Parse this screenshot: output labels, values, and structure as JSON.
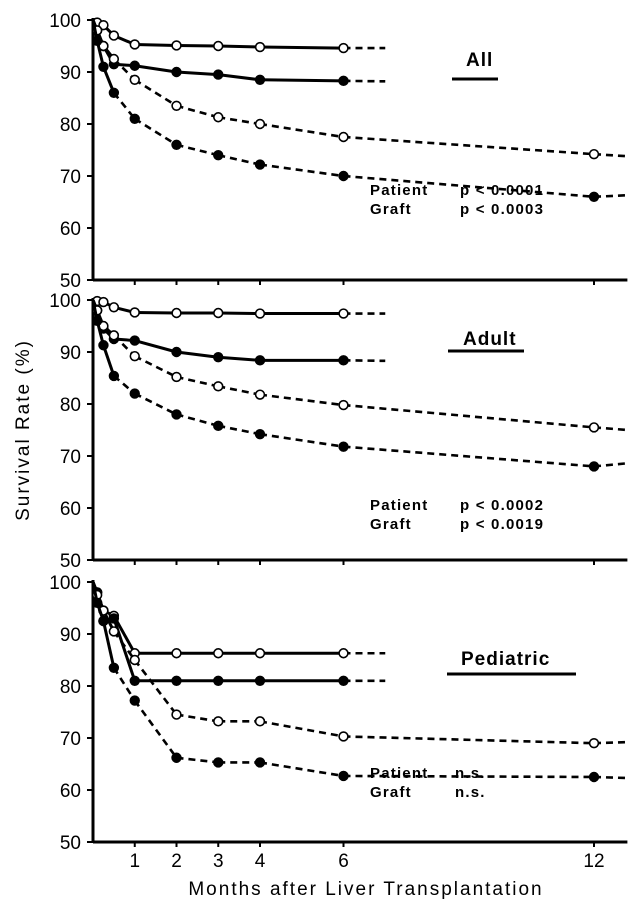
{
  "chart_data": {
    "type": "line",
    "ylabel": "Survival Rate (%)",
    "xlabel": "Months after Liver Transplantation",
    "x_ticks": [
      1,
      2,
      3,
      4,
      6,
      12
    ],
    "y_ticks": [
      50,
      60,
      70,
      80,
      90,
      100
    ],
    "xlim": [
      0,
      12.8
    ],
    "ylim": [
      50,
      100
    ],
    "panels": [
      {
        "title": "All",
        "stats": [
          {
            "label": "Patient",
            "value": "p < 0.0001"
          },
          {
            "label": "Graft",
            "value": "p < 0.0003"
          }
        ],
        "series": [
          {
            "open": true,
            "solid_until": 6,
            "points": [
              [
                0,
                100
              ],
              [
                0.1,
                99.5
              ],
              [
                0.25,
                99
              ],
              [
                0.5,
                97
              ],
              [
                1,
                95.3
              ],
              [
                2,
                95.1
              ],
              [
                3,
                95
              ],
              [
                4,
                94.8
              ],
              [
                6,
                94.6
              ],
              [
                7,
                94.6
              ]
            ]
          },
          {
            "open": false,
            "solid_until": 6,
            "points": [
              [
                0,
                100
              ],
              [
                0.1,
                98
              ],
              [
                0.25,
                95
              ],
              [
                0.5,
                91.5
              ],
              [
                1,
                91.2
              ],
              [
                2,
                90
              ],
              [
                3,
                89.5
              ],
              [
                4,
                88.5
              ],
              [
                6,
                88.3
              ],
              [
                7,
                88.2
              ]
            ]
          },
          {
            "open": true,
            "solid_until": 0.5,
            "points": [
              [
                0,
                100
              ],
              [
                0.1,
                98
              ],
              [
                0.25,
                95
              ],
              [
                0.5,
                92.5
              ],
              [
                1,
                88.5
              ],
              [
                2,
                83.5
              ],
              [
                3,
                81.3
              ],
              [
                4,
                80
              ],
              [
                6,
                77.5
              ],
              [
                12,
                74.2
              ],
              [
                12.8,
                73.8
              ]
            ]
          },
          {
            "open": false,
            "solid_until": 0.5,
            "points": [
              [
                0,
                100
              ],
              [
                0.1,
                96
              ],
              [
                0.25,
                91
              ],
              [
                0.5,
                86
              ],
              [
                1,
                81
              ],
              [
                2,
                76
              ],
              [
                3,
                74
              ],
              [
                4,
                72.2
              ],
              [
                6,
                70
              ],
              [
                12,
                66
              ],
              [
                12.8,
                66.3
              ]
            ]
          }
        ]
      },
      {
        "title": "Adult",
        "stats": [
          {
            "label": "Patient",
            "value": "p < 0.0002"
          },
          {
            "label": "Graft",
            "value": "p < 0.0019"
          }
        ],
        "series": [
          {
            "open": true,
            "solid_until": 6,
            "points": [
              [
                0,
                100
              ],
              [
                0.1,
                99.8
              ],
              [
                0.25,
                99.6
              ],
              [
                0.5,
                98.6
              ],
              [
                1,
                97.6
              ],
              [
                2,
                97.5
              ],
              [
                3,
                97.5
              ],
              [
                4,
                97.4
              ],
              [
                6,
                97.4
              ],
              [
                7,
                97.4
              ]
            ]
          },
          {
            "open": false,
            "solid_until": 6,
            "points": [
              [
                0,
                100
              ],
              [
                0.1,
                98
              ],
              [
                0.25,
                94.5
              ],
              [
                0.5,
                92.5
              ],
              [
                1,
                92.2
              ],
              [
                2,
                90
              ],
              [
                3,
                89
              ],
              [
                4,
                88.4
              ],
              [
                6,
                88.4
              ],
              [
                7,
                88.3
              ]
            ]
          },
          {
            "open": true,
            "solid_until": 0.5,
            "points": [
              [
                0,
                100
              ],
              [
                0.1,
                98
              ],
              [
                0.25,
                95
              ],
              [
                0.5,
                93.2
              ],
              [
                1,
                89.2
              ],
              [
                2,
                85.2
              ],
              [
                3,
                83.4
              ],
              [
                4,
                81.8
              ],
              [
                6,
                79.8
              ],
              [
                12,
                75.5
              ],
              [
                12.8,
                75
              ]
            ]
          },
          {
            "open": false,
            "solid_until": 0.5,
            "points": [
              [
                0,
                100
              ],
              [
                0.1,
                96
              ],
              [
                0.25,
                91.3
              ],
              [
                0.5,
                85.4
              ],
              [
                1,
                82
              ],
              [
                2,
                78
              ],
              [
                3,
                75.8
              ],
              [
                4,
                74.2
              ],
              [
                6,
                71.8
              ],
              [
                12,
                68
              ],
              [
                12.8,
                68.6
              ]
            ]
          }
        ]
      },
      {
        "title": "Pediatric",
        "stats": [
          {
            "label": "Patient",
            "value": "n.s."
          },
          {
            "label": "Graft",
            "value": "n.s."
          }
        ],
        "series": [
          {
            "open": true,
            "solid_until": 6,
            "points": [
              [
                0,
                100
              ],
              [
                0.1,
                98
              ],
              [
                0.25,
                94.5
              ],
              [
                0.5,
                93.5
              ],
              [
                1,
                86.3
              ],
              [
                2,
                86.3
              ],
              [
                3,
                86.3
              ],
              [
                4,
                86.3
              ],
              [
                6,
                86.3
              ],
              [
                7,
                86.3
              ]
            ]
          },
          {
            "open": false,
            "solid_until": 6,
            "points": [
              [
                0,
                100
              ],
              [
                0.1,
                98
              ],
              [
                0.25,
                92.5
              ],
              [
                0.5,
                93
              ],
              [
                1,
                81
              ],
              [
                2,
                81
              ],
              [
                3,
                81
              ],
              [
                4,
                81
              ],
              [
                6,
                81
              ],
              [
                7,
                81
              ]
            ]
          },
          {
            "open": true,
            "solid_until": 0.5,
            "points": [
              [
                0,
                100
              ],
              [
                0.1,
                97.5
              ],
              [
                0.25,
                94.5
              ],
              [
                0.5,
                90.5
              ],
              [
                1,
                85
              ],
              [
                2,
                74.5
              ],
              [
                3,
                73.2
              ],
              [
                4,
                73.2
              ],
              [
                6,
                70.3
              ],
              [
                12,
                69
              ],
              [
                12.8,
                69.2
              ]
            ]
          },
          {
            "open": false,
            "solid_until": 0.5,
            "points": [
              [
                0,
                100
              ],
              [
                0.1,
                96
              ],
              [
                0.25,
                92.5
              ],
              [
                0.5,
                83.5
              ],
              [
                1,
                77.2
              ],
              [
                2,
                66.2
              ],
              [
                3,
                65.3
              ],
              [
                4,
                65.3
              ],
              [
                6,
                62.7
              ],
              [
                12,
                62.5
              ],
              [
                12.8,
                62.3
              ]
            ]
          }
        ]
      }
    ]
  }
}
